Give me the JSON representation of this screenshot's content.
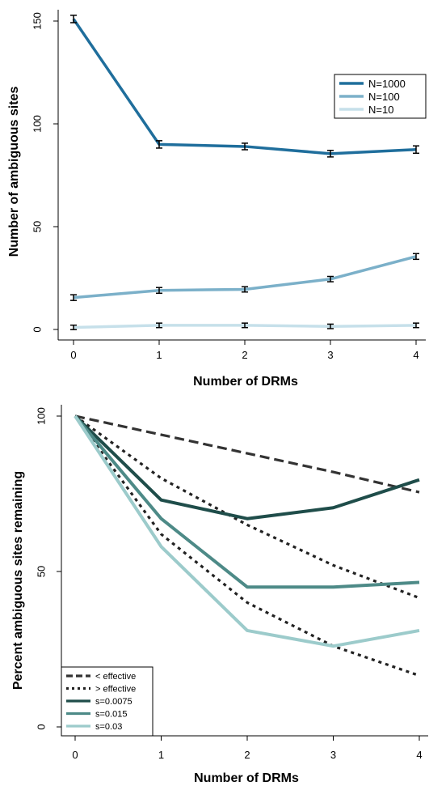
{
  "chart_data": [
    {
      "type": "line",
      "xlabel": "Number of DRMs",
      "ylabel": "Number of ambiguous sites",
      "x": [
        0,
        1,
        2,
        3,
        4
      ],
      "xticks": [
        "0",
        "1",
        "2",
        "3",
        "4"
      ],
      "yticks": [
        "0",
        "50",
        "100",
        "150"
      ],
      "ylim": [
        0,
        155
      ],
      "error_bars": true,
      "legend_position": "top-right",
      "series": [
        {
          "name": "N=1000",
          "color": "#1f6e9c",
          "values": [
            151,
            90,
            89,
            85.5,
            87.5
          ],
          "err": [
            1.2,
            1.2,
            1.0,
            1.0,
            1.2
          ]
        },
        {
          "name": "N=100",
          "color": "#7bb0c9",
          "values": [
            15.5,
            19,
            19.5,
            24.5,
            35.5
          ],
          "err": [
            0.8,
            0.8,
            0.7,
            0.7,
            0.8
          ]
        },
        {
          "name": "N=10",
          "color": "#c6e0ea",
          "values": [
            1,
            2,
            2,
            1.5,
            2
          ],
          "err": [
            0.5,
            0.5,
            0.5,
            0.5,
            0.5
          ]
        }
      ]
    },
    {
      "type": "line",
      "xlabel": "Number of DRMs",
      "ylabel": "Percent ambiguous sites remaining",
      "x": [
        0,
        1,
        2,
        3,
        4
      ],
      "xticks": [
        "0",
        "1",
        "2",
        "3",
        "4"
      ],
      "yticks": [
        "0",
        "50",
        "100"
      ],
      "ylim": [
        0,
        100
      ],
      "legend_position": "bottom-left",
      "series": [
        {
          "name": "< effective",
          "color": "#333333",
          "dash": "long",
          "values": [
            100,
            94,
            88,
            82,
            75.5
          ]
        },
        {
          "name": "> effective",
          "color": "#222222",
          "dash": "dot",
          "values": [
            100,
            80,
            65,
            52,
            41.5
          ]
        },
        {
          "name": "> effective",
          "color": "#222222",
          "dash": "dot",
          "legend": false,
          "values": [
            100,
            62,
            40,
            26,
            16.5
          ]
        },
        {
          "name": "s=0.0075",
          "color": "#1f4d4a",
          "values": [
            100,
            73,
            67,
            70.5,
            79.5
          ]
        },
        {
          "name": "s=0.015",
          "color": "#4d8a87",
          "values": [
            100,
            67,
            45,
            45,
            46.5
          ]
        },
        {
          "name": "s=0.03",
          "color": "#9ccbcb",
          "values": [
            100,
            58,
            31,
            26,
            31
          ]
        }
      ]
    }
  ]
}
